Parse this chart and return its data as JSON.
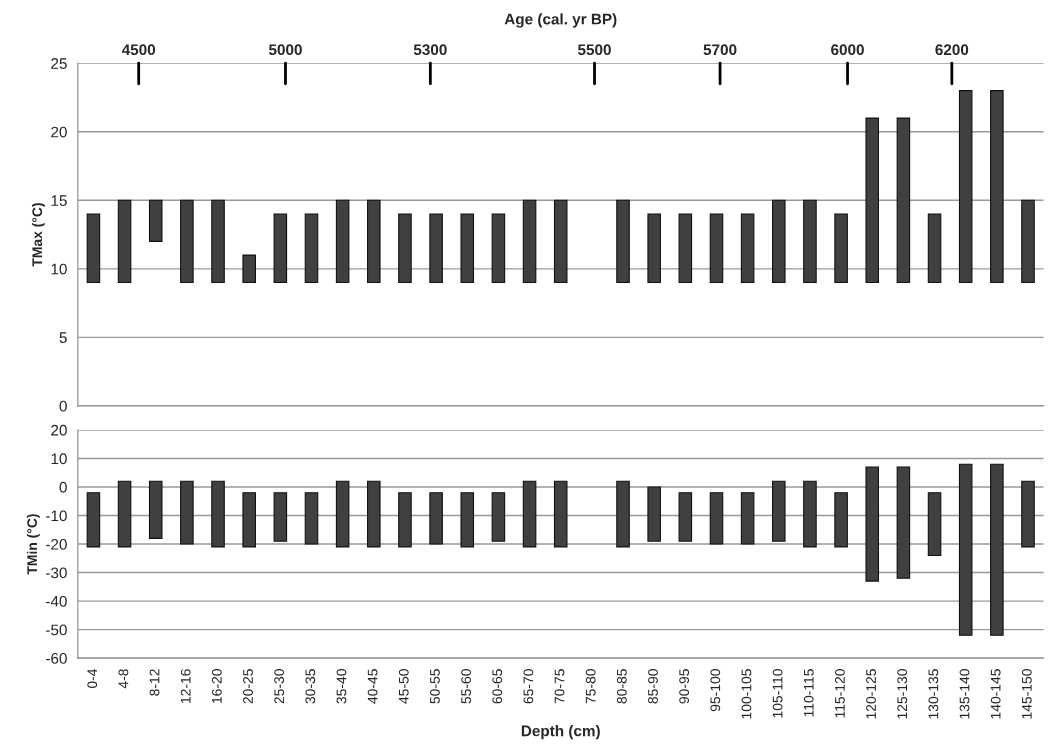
{
  "chart_data": [
    {
      "type": "bar",
      "ylabel": "TMax (°C)",
      "title": "Age (cal. yr BP)",
      "categories": [
        null,
        null,
        null,
        null,
        null,
        null,
        null,
        null,
        null,
        null,
        null,
        null,
        null,
        null,
        null,
        null,
        null,
        null,
        null,
        null,
        null,
        null,
        null,
        null,
        null,
        null,
        null,
        null,
        null,
        null,
        null
      ],
      "series": [
        {
          "color": "#404040",
          "base": [
            9,
            9,
            12,
            9,
            9,
            9,
            9,
            9,
            9,
            9,
            9,
            9,
            9,
            9,
            9,
            9,
            null,
            9,
            9,
            9,
            9,
            9,
            9,
            9,
            9,
            9,
            9,
            9,
            9,
            9,
            9
          ],
          "values": [
            5,
            6,
            3,
            6,
            6,
            2,
            5,
            5,
            6,
            6,
            5,
            5,
            5,
            5,
            6,
            6,
            null,
            6,
            5,
            5,
            5,
            5,
            6,
            6,
            5,
            12,
            12,
            5,
            14,
            14,
            6
          ]
        }
      ],
      "ylim": [
        0,
        25
      ],
      "yticks": [
        0,
        5,
        10,
        15,
        20,
        25
      ],
      "annotations": [
        "4500",
        "5000",
        "5300",
        "5500",
        "5700",
        "6000",
        "6200"
      ],
      "grid": "y",
      "tick_labels": "y"
    },
    {
      "type": "bar",
      "ylabel": "TMin (°C)",
      "xlabel": "Depth (cm)",
      "categories": [
        "0-4",
        "4-8",
        "8-12",
        "12-16",
        "16-20",
        "20-25",
        "25-30",
        "30-35",
        "35-40",
        "40-45",
        "45-50",
        "50-55",
        "55-60",
        "60-65",
        "65-70",
        "70-75",
        "75-80",
        "80-85",
        "85-90",
        "90-95",
        "95-100",
        "100-105",
        "105-110",
        "110-115",
        "115-120",
        "120-125",
        "125-130",
        "130-135",
        "135-140",
        "140-145",
        "145-150"
      ],
      "series": [
        {
          "color": "#404040",
          "base": [
            -21,
            -21,
            -18,
            -20,
            -21,
            -21,
            -19,
            -20,
            -21,
            -21,
            -21,
            -20,
            -21,
            -19,
            -21,
            -21,
            null,
            -21,
            -19,
            -19,
            -20,
            -20,
            -19,
            -21,
            -21,
            -33,
            -32,
            -24,
            -52,
            -52,
            -21
          ],
          "values": [
            19,
            23,
            20,
            22,
            23,
            19,
            17,
            18,
            23,
            23,
            19,
            18,
            19,
            17,
            23,
            23,
            null,
            23,
            19,
            17,
            18,
            18,
            21,
            23,
            19,
            40,
            39,
            22,
            60,
            60,
            23
          ]
        }
      ],
      "ylim": [
        -60,
        20
      ],
      "yticks": [
        -60,
        -50,
        -40,
        -30,
        -20,
        -10,
        0,
        10,
        20
      ],
      "grid": "y"
    }
  ]
}
